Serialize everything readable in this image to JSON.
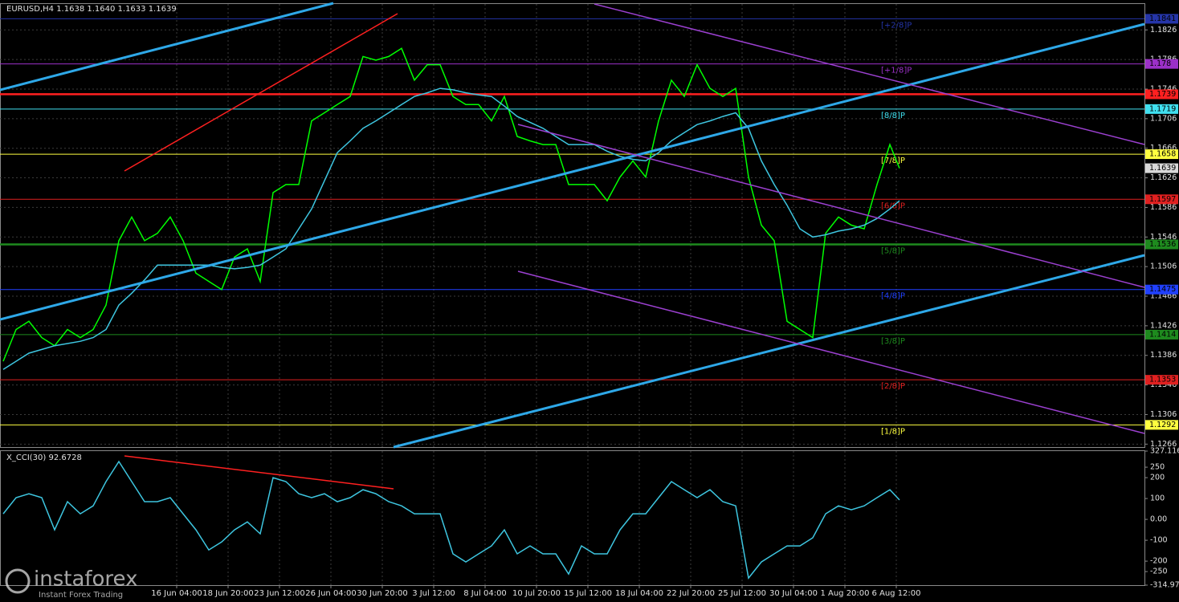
{
  "chart_data": [
    {
      "type": "line",
      "title": "EURUSD,H4  1.1638 1.1640 1.1633 1.1639",
      "x": [
        0,
        4,
        8,
        12,
        16,
        20,
        24,
        28,
        32,
        36,
        40,
        44,
        48,
        52,
        56,
        60,
        64,
        68,
        72,
        76,
        80,
        84,
        88,
        92,
        96,
        100,
        104,
        108,
        112,
        116,
        120,
        124,
        128,
        132,
        136,
        140,
        144,
        148,
        152,
        156,
        160,
        164,
        168,
        172,
        176,
        180,
        184,
        188,
        192,
        196,
        200,
        204,
        208,
        212,
        216,
        220,
        224,
        228,
        232,
        236,
        240,
        244,
        248,
        252,
        256,
        260,
        264,
        268,
        272,
        276,
        279
      ],
      "xlim": [
        -1,
        355.25
      ],
      "xticks": [
        {
          "value": 54,
          "label": "16 Jun 04:00"
        },
        {
          "value": 70,
          "label": "18 Jun 20:00"
        },
        {
          "value": 86,
          "label": "23 Jun 12:00"
        },
        {
          "value": 102,
          "label": "26 Jun 04:00"
        },
        {
          "value": 118,
          "label": "30 Jun 20:00"
        },
        {
          "value": 134,
          "label": "3 Jul 12:00"
        },
        {
          "value": 150,
          "label": "8 Jul 04:00"
        },
        {
          "value": 166,
          "label": "10 Jul 20:00"
        },
        {
          "value": 182,
          "label": "15 Jul 12:00"
        },
        {
          "value": 198,
          "label": "18 Jul 04:00"
        },
        {
          "value": 214,
          "label": "22 Jul 20:00"
        },
        {
          "value": 230,
          "label": "25 Jul 12:00"
        },
        {
          "value": 246,
          "label": "30 Jul 04:00"
        },
        {
          "value": 262,
          "label": "1 Aug 20:00"
        },
        {
          "value": 278,
          "label": "6 Aug 12:00"
        }
      ],
      "ylim": [
        1.1262,
        1.1861
      ],
      "yticks": [
        1.1826,
        1.1786,
        1.1746,
        1.1706,
        1.1666,
        1.1626,
        1.1586,
        1.1546,
        1.1506,
        1.1466,
        1.1426,
        1.1386,
        1.1346,
        1.1306,
        1.1266
      ],
      "grid": true,
      "series": [
        {
          "color": "#00ff00",
          "values": [
            1.1378,
            1.1421,
            1.1432,
            1.141,
            1.1399,
            1.1421,
            1.141,
            1.1421,
            1.1454,
            1.1541,
            1.1573,
            1.1541,
            1.1551,
            1.1573,
            1.1541,
            1.1497,
            1.1486,
            1.1475,
            1.1519,
            1.153,
            1.1486,
            1.1606,
            1.1617,
            1.1617,
            1.1703,
            1.1714,
            1.1725,
            1.1736,
            1.179,
            1.1785,
            1.179,
            1.1801,
            1.1758,
            1.1779,
            1.1779,
            1.1736,
            1.1725,
            1.1725,
            1.1703,
            1.1736,
            1.1682,
            1.1676,
            1.1671,
            1.1671,
            1.1617,
            1.1617,
            1.1617,
            1.1595,
            1.1627,
            1.1649,
            1.1627,
            1.1703,
            1.1758,
            1.1736,
            1.1779,
            1.1747,
            1.1736,
            1.1747,
            1.1627,
            1.1562,
            1.1541,
            1.1432,
            1.1421,
            1.141,
            1.1551,
            1.1573,
            1.1562,
            1.1557,
            1.1617,
            1.1671,
            1.1639
          ]
        },
        {
          "color": "#3ec6e0",
          "values": [
            1.1367,
            1.1378,
            1.1389,
            1.1394,
            1.1399,
            1.1402,
            1.1405,
            1.141,
            1.1421,
            1.1454,
            1.147,
            1.1488,
            1.1508,
            1.1508,
            1.1508,
            1.1508,
            1.1508,
            1.1505,
            1.1503,
            1.1505,
            1.1508,
            1.1519,
            1.153,
            1.1557,
            1.1584,
            1.1622,
            1.166,
            1.1676,
            1.1693,
            1.1703,
            1.1714,
            1.1725,
            1.1736,
            1.1741,
            1.1747,
            1.1745,
            1.1741,
            1.1738,
            1.1736,
            1.1723,
            1.1709,
            1.1701,
            1.1693,
            1.1682,
            1.1671,
            1.1671,
            1.1671,
            1.1662,
            1.1655,
            1.1651,
            1.1649,
            1.166,
            1.1676,
            1.1687,
            1.1698,
            1.1703,
            1.1709,
            1.1714,
            1.1693,
            1.1649,
            1.1617,
            1.1589,
            1.1557,
            1.1546,
            1.1549,
            1.1554,
            1.1557,
            1.1562,
            1.1571,
            1.1584,
            1.1595
          ]
        }
      ],
      "levels": [
        {
          "value": 1.1841,
          "label": "[+2/8]P",
          "color": "#2535a8"
        },
        {
          "value": 1.178,
          "label": "[+1/8]P",
          "color": "#9b30c8"
        },
        {
          "value": 1.1739,
          "color": "#ff2020",
          "thick": true
        },
        {
          "value": 1.1719,
          "label": "[8/8]P",
          "color": "#40e0f0"
        },
        {
          "value": 1.1658,
          "label": "[7/8]P",
          "color": "#ffff40"
        },
        {
          "value": 1.1597,
          "label": "[6/8]P",
          "color": "#e02020"
        },
        {
          "value": 1.1536,
          "label": "[5/8]P",
          "color": "#1e8a1e",
          "thick": true
        },
        {
          "value": 1.1475,
          "label": "[4/8]P",
          "color": "#2040ff"
        },
        {
          "value": 1.1414,
          "label": "[3/8]P",
          "color": "#1e8a1e"
        },
        {
          "value": 1.1353,
          "label": "[2/8]P",
          "color": "#e02020"
        },
        {
          "value": 1.1292,
          "label": "[1/8]P",
          "color": "#ffff40"
        }
      ],
      "last": 1.1639,
      "watermark": {
        "brand": "instaforex",
        "tagline": "Instant Forex Trading"
      }
    },
    {
      "type": "line",
      "title": "X_CCI(30) 92.6728",
      "x": [
        0,
        4,
        8,
        12,
        16,
        20,
        24,
        28,
        32,
        36,
        40,
        44,
        48,
        52,
        56,
        60,
        64,
        68,
        72,
        76,
        80,
        84,
        88,
        92,
        96,
        100,
        104,
        108,
        112,
        116,
        120,
        124,
        128,
        132,
        136,
        140,
        144,
        148,
        152,
        156,
        160,
        164,
        168,
        172,
        176,
        180,
        184,
        188,
        192,
        196,
        200,
        204,
        208,
        212,
        216,
        220,
        224,
        228,
        232,
        236,
        240,
        244,
        248,
        252,
        256,
        260,
        264,
        268,
        272,
        276,
        279
      ],
      "xlim": [
        -1,
        355.25
      ],
      "ylim": [
        -314.975,
        327.116
      ],
      "yticks": [
        327.116,
        250,
        200,
        100,
        {
          "value": 0,
          "label": "0.00"
        },
        -100,
        -200,
        -250,
        -314.975
      ],
      "series": [
        {
          "color": "#3ec6e0",
          "values": [
            27,
            104,
            123,
            104,
            -50,
            85,
            27,
            65,
            181,
            277,
            181,
            85,
            85,
            104,
            27,
            -50,
            -146,
            -108,
            -50,
            -12,
            -69,
            200,
            181,
            123,
            104,
            123,
            85,
            104,
            142,
            123,
            85,
            65,
            27,
            27,
            27,
            -165,
            -204,
            -165,
            -127,
            -50,
            -165,
            -127,
            -165,
            -165,
            -262,
            -127,
            -165,
            -165,
            -50,
            27,
            27,
            104,
            181,
            142,
            104,
            142,
            85,
            65,
            -281,
            -204,
            -165,
            -127,
            -127,
            -88,
            27,
            65,
            46,
            65,
            104,
            142,
            93
          ]
        }
      ]
    }
  ]
}
